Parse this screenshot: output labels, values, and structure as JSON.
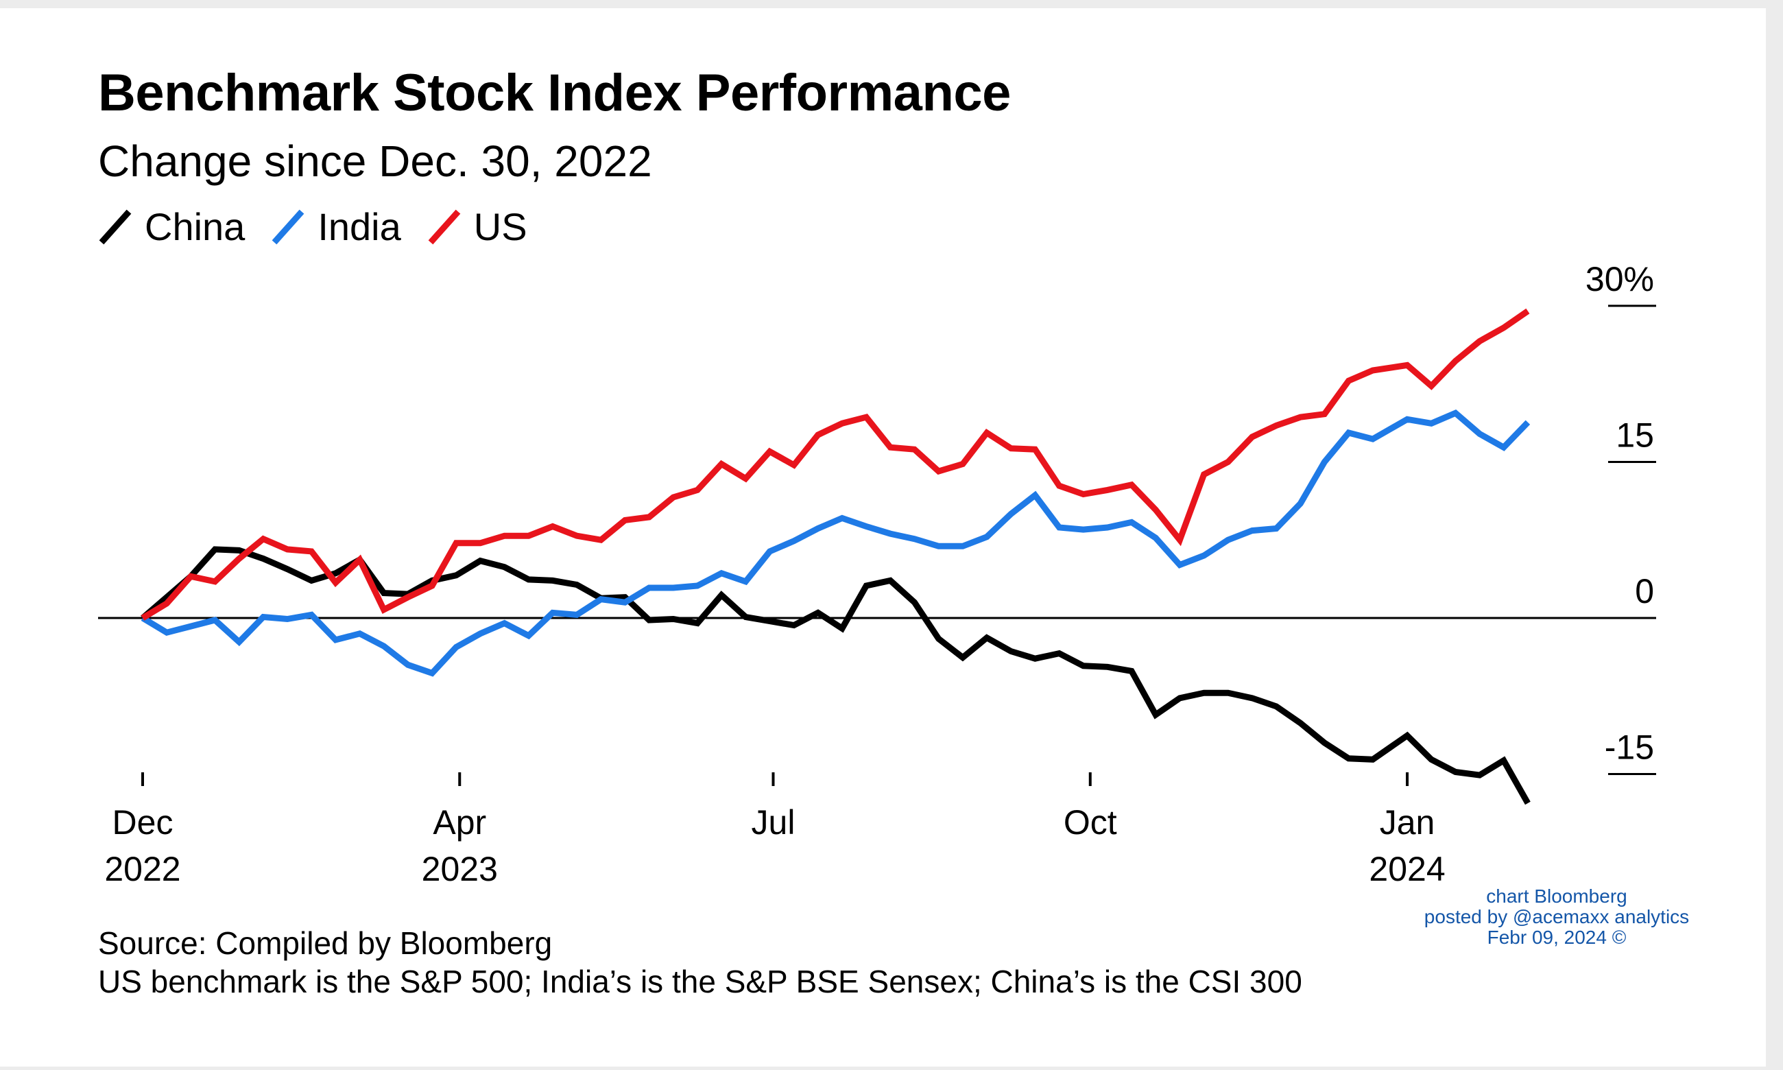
{
  "title": "Benchmark Stock Index Performance",
  "subtitle": "Change since Dec. 30, 2022",
  "legend": [
    {
      "name": "China",
      "color": "#000000"
    },
    {
      "name": "India",
      "color": "#1f7ae6"
    },
    {
      "name": "US",
      "color": "#e8141c"
    }
  ],
  "footer": {
    "source": "Source: Compiled by Bloomberg",
    "note": "US benchmark is the S&P 500; India’s is the S&P BSE Sensex; China’s is the CSI 300"
  },
  "watermark": {
    "line1": "chart Bloomberg",
    "line2": "posted by @acemaxx analytics",
    "line3": "Febr 09, 2024 ©"
  },
  "chart_data": {
    "type": "line",
    "title": "Benchmark Stock Index Performance",
    "subtitle": "Change since Dec. 30, 2022",
    "x_start": "2022-12-30",
    "x_end": "2024-02-09",
    "x_ticks": [
      {
        "date": "2022-12-30",
        "line1": "Dec",
        "line2": "2022"
      },
      {
        "date": "2023-04-01",
        "line1": "Apr",
        "line2": "2023"
      },
      {
        "date": "2023-07-01",
        "line1": "Jul",
        "line2": ""
      },
      {
        "date": "2023-10-01",
        "line1": "Oct",
        "line2": ""
      },
      {
        "date": "2024-01-01",
        "line1": "Jan",
        "line2": "2024"
      }
    ],
    "y_ticks": [
      {
        "value": 30,
        "label": "30%"
      },
      {
        "value": 15,
        "label": "15"
      },
      {
        "value": 0,
        "label": "0"
      },
      {
        "value": -15,
        "label": "-15"
      }
    ],
    "ylim": [
      -17.8,
      30
    ],
    "grid": false,
    "legend_position": "top-left",
    "series": [
      {
        "name": "China",
        "color": "#000000",
        "points": [
          [
            "2022-12-30",
            0
          ],
          [
            "2023-01-06",
            2
          ],
          [
            "2023-01-13",
            4
          ],
          [
            "2023-01-20",
            6.6
          ],
          [
            "2023-01-27",
            6.5
          ],
          [
            "2023-02-03",
            5.7
          ],
          [
            "2023-02-10",
            4.7
          ],
          [
            "2023-02-17",
            3.6
          ],
          [
            "2023-02-24",
            4.3
          ],
          [
            "2023-03-03",
            5.6
          ],
          [
            "2023-03-10",
            2.4
          ],
          [
            "2023-03-17",
            2.3
          ],
          [
            "2023-03-24",
            3.6
          ],
          [
            "2023-03-31",
            4.1
          ],
          [
            "2023-04-07",
            5.5
          ],
          [
            "2023-04-14",
            4.9
          ],
          [
            "2023-04-21",
            3.7
          ],
          [
            "2023-04-28",
            3.6
          ],
          [
            "2023-05-05",
            3.2
          ],
          [
            "2023-05-12",
            1.9
          ],
          [
            "2023-05-19",
            2
          ],
          [
            "2023-05-26",
            -0.2
          ],
          [
            "2023-06-02",
            -0.1
          ],
          [
            "2023-06-09",
            -0.5
          ],
          [
            "2023-06-16",
            2.2
          ],
          [
            "2023-06-23",
            0.1
          ],
          [
            "2023-06-30",
            -0.3
          ],
          [
            "2023-07-07",
            -0.7
          ],
          [
            "2023-07-14",
            0.5
          ],
          [
            "2023-07-21",
            -1
          ],
          [
            "2023-07-28",
            3.1
          ],
          [
            "2023-08-04",
            3.6
          ],
          [
            "2023-08-11",
            1.5
          ],
          [
            "2023-08-18",
            -2
          ],
          [
            "2023-08-25",
            -3.8
          ],
          [
            "2023-09-01",
            -1.9
          ],
          [
            "2023-09-08",
            -3.2
          ],
          [
            "2023-09-15",
            -3.9
          ],
          [
            "2023-09-22",
            -3.4
          ],
          [
            "2023-09-29",
            -4.6
          ],
          [
            "2023-10-06",
            -4.7
          ],
          [
            "2023-10-13",
            -5.1
          ],
          [
            "2023-10-20",
            -9.3
          ],
          [
            "2023-10-27",
            -7.7
          ],
          [
            "2023-11-03",
            -7.2
          ],
          [
            "2023-11-10",
            -7.2
          ],
          [
            "2023-11-17",
            -7.7
          ],
          [
            "2023-11-24",
            -8.5
          ],
          [
            "2023-12-01",
            -10.1
          ],
          [
            "2023-12-08",
            -12
          ],
          [
            "2023-12-15",
            -13.5
          ],
          [
            "2023-12-22",
            -13.6
          ],
          [
            "2024-01-01",
            -11.3
          ],
          [
            "2024-01-08",
            -13.6
          ],
          [
            "2024-01-15",
            -14.8
          ],
          [
            "2024-01-22",
            -15.1
          ],
          [
            "2024-01-29",
            -13.7
          ],
          [
            "2024-02-05",
            -17.8
          ]
        ]
      },
      {
        "name": "India",
        "color": "#1f7ae6",
        "points": [
          [
            "2022-12-30",
            0
          ],
          [
            "2023-01-06",
            -1.4
          ],
          [
            "2023-01-13",
            -0.8
          ],
          [
            "2023-01-20",
            -0.2
          ],
          [
            "2023-01-27",
            -2.3
          ],
          [
            "2023-02-03",
            0.1
          ],
          [
            "2023-02-10",
            -0.1
          ],
          [
            "2023-02-17",
            0.3
          ],
          [
            "2023-02-24",
            -2.1
          ],
          [
            "2023-03-03",
            -1.5
          ],
          [
            "2023-03-10",
            -2.7
          ],
          [
            "2023-03-17",
            -4.5
          ],
          [
            "2023-03-24",
            -5.3
          ],
          [
            "2023-03-31",
            -2.8
          ],
          [
            "2023-04-07",
            -1.5
          ],
          [
            "2023-04-14",
            -0.5
          ],
          [
            "2023-04-21",
            -1.7
          ],
          [
            "2023-04-28",
            0.5
          ],
          [
            "2023-05-05",
            0.3
          ],
          [
            "2023-05-12",
            1.8
          ],
          [
            "2023-05-19",
            1.5
          ],
          [
            "2023-05-26",
            2.9
          ],
          [
            "2023-06-02",
            2.9
          ],
          [
            "2023-06-09",
            3.1
          ],
          [
            "2023-06-16",
            4.3
          ],
          [
            "2023-06-23",
            3.5
          ],
          [
            "2023-06-30",
            6.4
          ],
          [
            "2023-07-07",
            7.4
          ],
          [
            "2023-07-14",
            8.6
          ],
          [
            "2023-07-21",
            9.6
          ],
          [
            "2023-07-28",
            8.8
          ],
          [
            "2023-08-04",
            8.1
          ],
          [
            "2023-08-11",
            7.6
          ],
          [
            "2023-08-18",
            6.9
          ],
          [
            "2023-08-25",
            6.9
          ],
          [
            "2023-09-01",
            7.8
          ],
          [
            "2023-09-08",
            10
          ],
          [
            "2023-09-15",
            11.8
          ],
          [
            "2023-09-22",
            8.7
          ],
          [
            "2023-09-29",
            8.5
          ],
          [
            "2023-10-06",
            8.7
          ],
          [
            "2023-10-13",
            9.2
          ],
          [
            "2023-10-20",
            7.7
          ],
          [
            "2023-10-27",
            5.1
          ],
          [
            "2023-11-03",
            6
          ],
          [
            "2023-11-10",
            7.5
          ],
          [
            "2023-11-17",
            8.4
          ],
          [
            "2023-11-24",
            8.6
          ],
          [
            "2023-12-01",
            11
          ],
          [
            "2023-12-08",
            15
          ],
          [
            "2023-12-15",
            17.8
          ],
          [
            "2023-12-22",
            17.2
          ],
          [
            "2024-01-01",
            19.1
          ],
          [
            "2024-01-08",
            18.7
          ],
          [
            "2024-01-15",
            19.7
          ],
          [
            "2024-01-22",
            17.7
          ],
          [
            "2024-01-29",
            16.4
          ],
          [
            "2024-02-05",
            18.8
          ]
        ]
      },
      {
        "name": "US",
        "color": "#e8141c",
        "points": [
          [
            "2022-12-30",
            0
          ],
          [
            "2023-01-06",
            1.4
          ],
          [
            "2023-01-13",
            4
          ],
          [
            "2023-01-20",
            3.5
          ],
          [
            "2023-01-27",
            5.7
          ],
          [
            "2023-02-03",
            7.6
          ],
          [
            "2023-02-10",
            6.6
          ],
          [
            "2023-02-17",
            6.4
          ],
          [
            "2023-02-24",
            3.4
          ],
          [
            "2023-03-03",
            5.6
          ],
          [
            "2023-03-10",
            0.8
          ],
          [
            "2023-03-17",
            2
          ],
          [
            "2023-03-24",
            3.1
          ],
          [
            "2023-03-31",
            7.2
          ],
          [
            "2023-04-07",
            7.2
          ],
          [
            "2023-04-14",
            7.9
          ],
          [
            "2023-04-21",
            7.9
          ],
          [
            "2023-04-28",
            8.8
          ],
          [
            "2023-05-05",
            7.9
          ],
          [
            "2023-05-12",
            7.5
          ],
          [
            "2023-05-19",
            9.4
          ],
          [
            "2023-05-26",
            9.7
          ],
          [
            "2023-06-02",
            11.6
          ],
          [
            "2023-06-09",
            12.3
          ],
          [
            "2023-06-16",
            14.8
          ],
          [
            "2023-06-23",
            13.4
          ],
          [
            "2023-06-30",
            16
          ],
          [
            "2023-07-07",
            14.7
          ],
          [
            "2023-07-14",
            17.6
          ],
          [
            "2023-07-21",
            18.7
          ],
          [
            "2023-07-28",
            19.3
          ],
          [
            "2023-08-04",
            16.4
          ],
          [
            "2023-08-11",
            16.2
          ],
          [
            "2023-08-18",
            14.1
          ],
          [
            "2023-08-25",
            14.8
          ],
          [
            "2023-09-01",
            17.8
          ],
          [
            "2023-09-08",
            16.3
          ],
          [
            "2023-09-15",
            16.2
          ],
          [
            "2023-09-22",
            12.7
          ],
          [
            "2023-09-29",
            11.9
          ],
          [
            "2023-10-06",
            12.3
          ],
          [
            "2023-10-13",
            12.8
          ],
          [
            "2023-10-20",
            10.4
          ],
          [
            "2023-10-27",
            7.5
          ],
          [
            "2023-11-03",
            13.8
          ],
          [
            "2023-11-10",
            15
          ],
          [
            "2023-11-17",
            17.4
          ],
          [
            "2023-11-24",
            18.5
          ],
          [
            "2023-12-01",
            19.3
          ],
          [
            "2023-12-08",
            19.6
          ],
          [
            "2023-12-15",
            22.8
          ],
          [
            "2023-12-22",
            23.8
          ],
          [
            "2024-01-01",
            24.3
          ],
          [
            "2024-01-08",
            22.3
          ],
          [
            "2024-01-15",
            24.7
          ],
          [
            "2024-01-22",
            26.6
          ],
          [
            "2024-01-29",
            27.9
          ],
          [
            "2024-02-05",
            29.5
          ]
        ]
      }
    ]
  }
}
